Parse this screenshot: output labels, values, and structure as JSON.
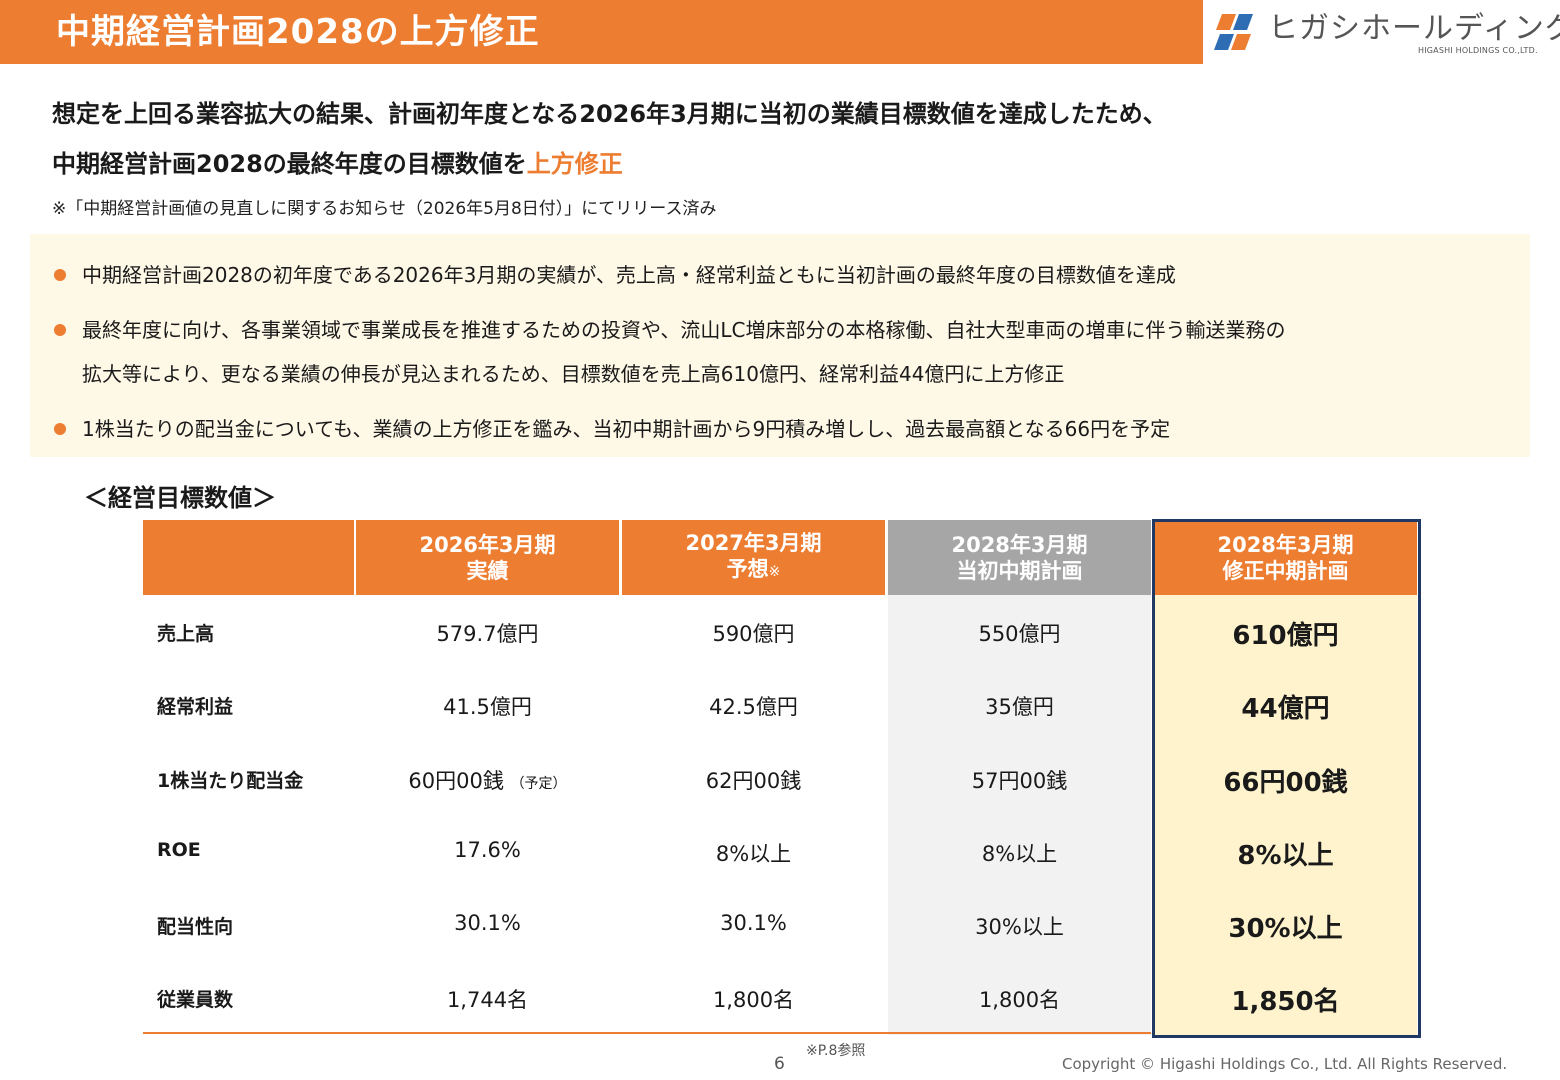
{
  "slide": {
    "title": "中期経営計画2028の上方修正",
    "page_number": "6",
    "copyright": "Copyright © Higashi Holdings Co., Ltd. All Rights Reserved.",
    "footnote": "※P.8参照"
  },
  "logo": {
    "name": "ヒガシホールディングス",
    "subtitle": "HIGASHI HOLDINGS CO.,LTD.",
    "colors": {
      "orange": "#ED7D31",
      "blue": "#2E6DB4"
    }
  },
  "headline": {
    "line1": "想定を上回る業容拡大の結果、計画初年度となる2026年3月期に当初の業績目標数値を達成したため、",
    "line2_prefix": "中期経営計画2028の最終年度の目標数値を",
    "line2_accent": "上方修正",
    "note": "※「中期経営計画値の見直しに関するお知らせ（2026年5月8日付）」にてリリース済み"
  },
  "bullets": [
    "中期経営計画2028の初年度である2026年3月期の実績が、売上高・経常利益ともに当初計画の最終年度の目標数値を達成",
    "最終年度に向け、各事業領域で事業成長を推進するための投資や、流山LC増床部分の本格稼働、自社大型車両の増車に伴う輸送業務の",
    "拡大等により、更なる業績の伸長が見込まれるため、目標数値を売上高610億円、経常利益44億円に上方修正",
    "1株当たりの配当金についても、業績の上方修正を鑑み、当初中期計画から9円積み増しし、過去最高額となる66円を予定"
  ],
  "table": {
    "section_title": "＜経営目標数値＞",
    "columns": [
      {
        "line1": "2026年3月期",
        "line2": "実績",
        "mark": ""
      },
      {
        "line1": "2027年3月期",
        "line2": "予想",
        "mark": "※"
      },
      {
        "line1": "2028年3月期",
        "line2": "当初中期計画",
        "mark": ""
      },
      {
        "line1": "2028年3月期",
        "line2": "修正中期計画",
        "mark": ""
      }
    ],
    "rows": [
      {
        "label": "売上高",
        "values": [
          "579.7億円",
          "590億円",
          "550億円",
          "610億円"
        ],
        "note": ""
      },
      {
        "label": "経常利益",
        "values": [
          "41.5億円",
          "42.5億円",
          "35億円",
          "44億円"
        ],
        "note": ""
      },
      {
        "label": "1株当たり配当金",
        "values": [
          "60円00銭",
          "62円00銭",
          "57円00銭",
          "66円00銭"
        ],
        "note": "（予定）"
      },
      {
        "label": "ROE",
        "values": [
          "17.6%",
          "8%以上",
          "8%以上",
          "8%以上"
        ],
        "note": ""
      },
      {
        "label": "配当性向",
        "values": [
          "30.1%",
          "30.1%",
          "30%以上",
          "30%以上"
        ],
        "note": ""
      },
      {
        "label": "従業員数",
        "values": [
          "1,744名",
          "1,800名",
          "1,800名",
          "1,850名"
        ],
        "note": ""
      }
    ],
    "colors": {
      "header_orange": "#ED7D31",
      "header_gray": "#A6A6A6",
      "gray_fill": "#F2F2F2",
      "highlight_fill": "#FEF3CC",
      "highlight_border": "#1F3864"
    }
  }
}
